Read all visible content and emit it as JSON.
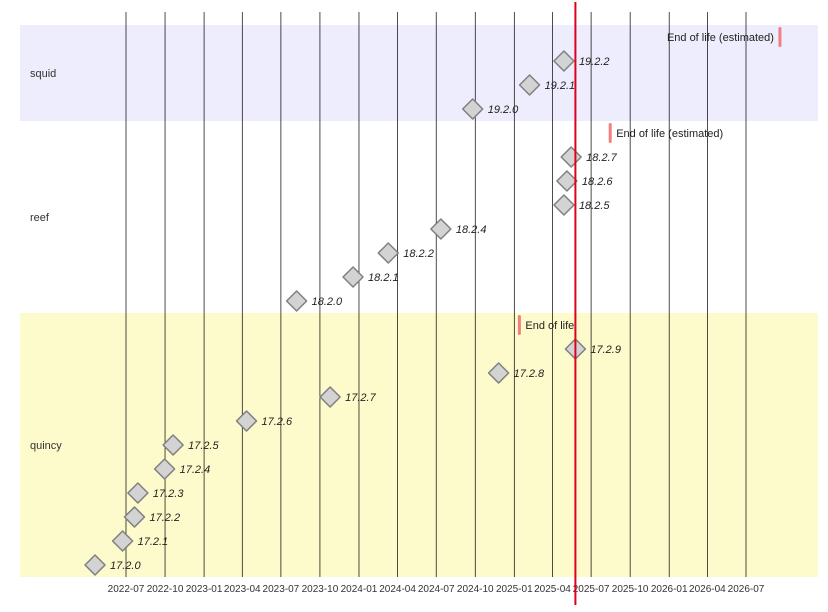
{
  "chart_data": {
    "type": "scatter",
    "title": "",
    "xlabel": "",
    "ylabel": "",
    "x_ticks": [
      "2022-07",
      "2022-10",
      "2023-01",
      "2023-04",
      "2023-07",
      "2023-10",
      "2024-01",
      "2024-04",
      "2024-07",
      "2024-10",
      "2025-01",
      "2025-04",
      "2025-07",
      "2025-10",
      "2026-01",
      "2026-04",
      "2026-07"
    ],
    "today": "2025-05-25",
    "colors": {
      "squid": "#ededfd",
      "reef": "#ffffff",
      "quincy": "#fdfacb",
      "today_line": "#e0001b",
      "eol_marker": "#f08080",
      "release_fill": "#d3d3d3",
      "release_stroke": "#808080",
      "grid": "#000000"
    },
    "groups": [
      {
        "name": "squid",
        "releases": [
          {
            "label": "19.2.2",
            "date": "2025-04-28"
          },
          {
            "label": "19.2.1",
            "date": "2025-02-06"
          },
          {
            "label": "19.2.0",
            "date": "2024-09-25"
          }
        ],
        "eol": {
          "label": "End of life (estimated)",
          "date": "2026-09-19"
        }
      },
      {
        "name": "reef",
        "releases": [
          {
            "label": "18.2.7",
            "date": "2025-05-15"
          },
          {
            "label": "18.2.6",
            "date": "2025-05-05"
          },
          {
            "label": "18.2.5",
            "date": "2025-04-28"
          },
          {
            "label": "18.2.4",
            "date": "2024-07-12"
          },
          {
            "label": "18.2.2",
            "date": "2024-03-10"
          },
          {
            "label": "18.2.1",
            "date": "2023-12-18"
          },
          {
            "label": "18.2.0",
            "date": "2023-08-07"
          }
        ],
        "eol": {
          "label": "End of life (estimated)",
          "date": "2025-08-15"
        }
      },
      {
        "name": "quincy",
        "releases": [
          {
            "label": "17.2.9",
            "date": "2025-05-25"
          },
          {
            "label": "17.2.8",
            "date": "2024-11-25"
          },
          {
            "label": "17.2.7",
            "date": "2023-10-25"
          },
          {
            "label": "17.2.6",
            "date": "2023-04-11"
          },
          {
            "label": "17.2.5",
            "date": "2022-10-20"
          },
          {
            "label": "17.2.4",
            "date": "2022-09-30"
          },
          {
            "label": "17.2.3",
            "date": "2022-07-29"
          },
          {
            "label": "17.2.2",
            "date": "2022-07-21"
          },
          {
            "label": "17.2.1",
            "date": "2022-06-23"
          },
          {
            "label": "17.2.0",
            "date": "2022-04-19"
          }
        ],
        "eol": {
          "label": "End of life",
          "date": "2025-01-13"
        }
      }
    ]
  }
}
